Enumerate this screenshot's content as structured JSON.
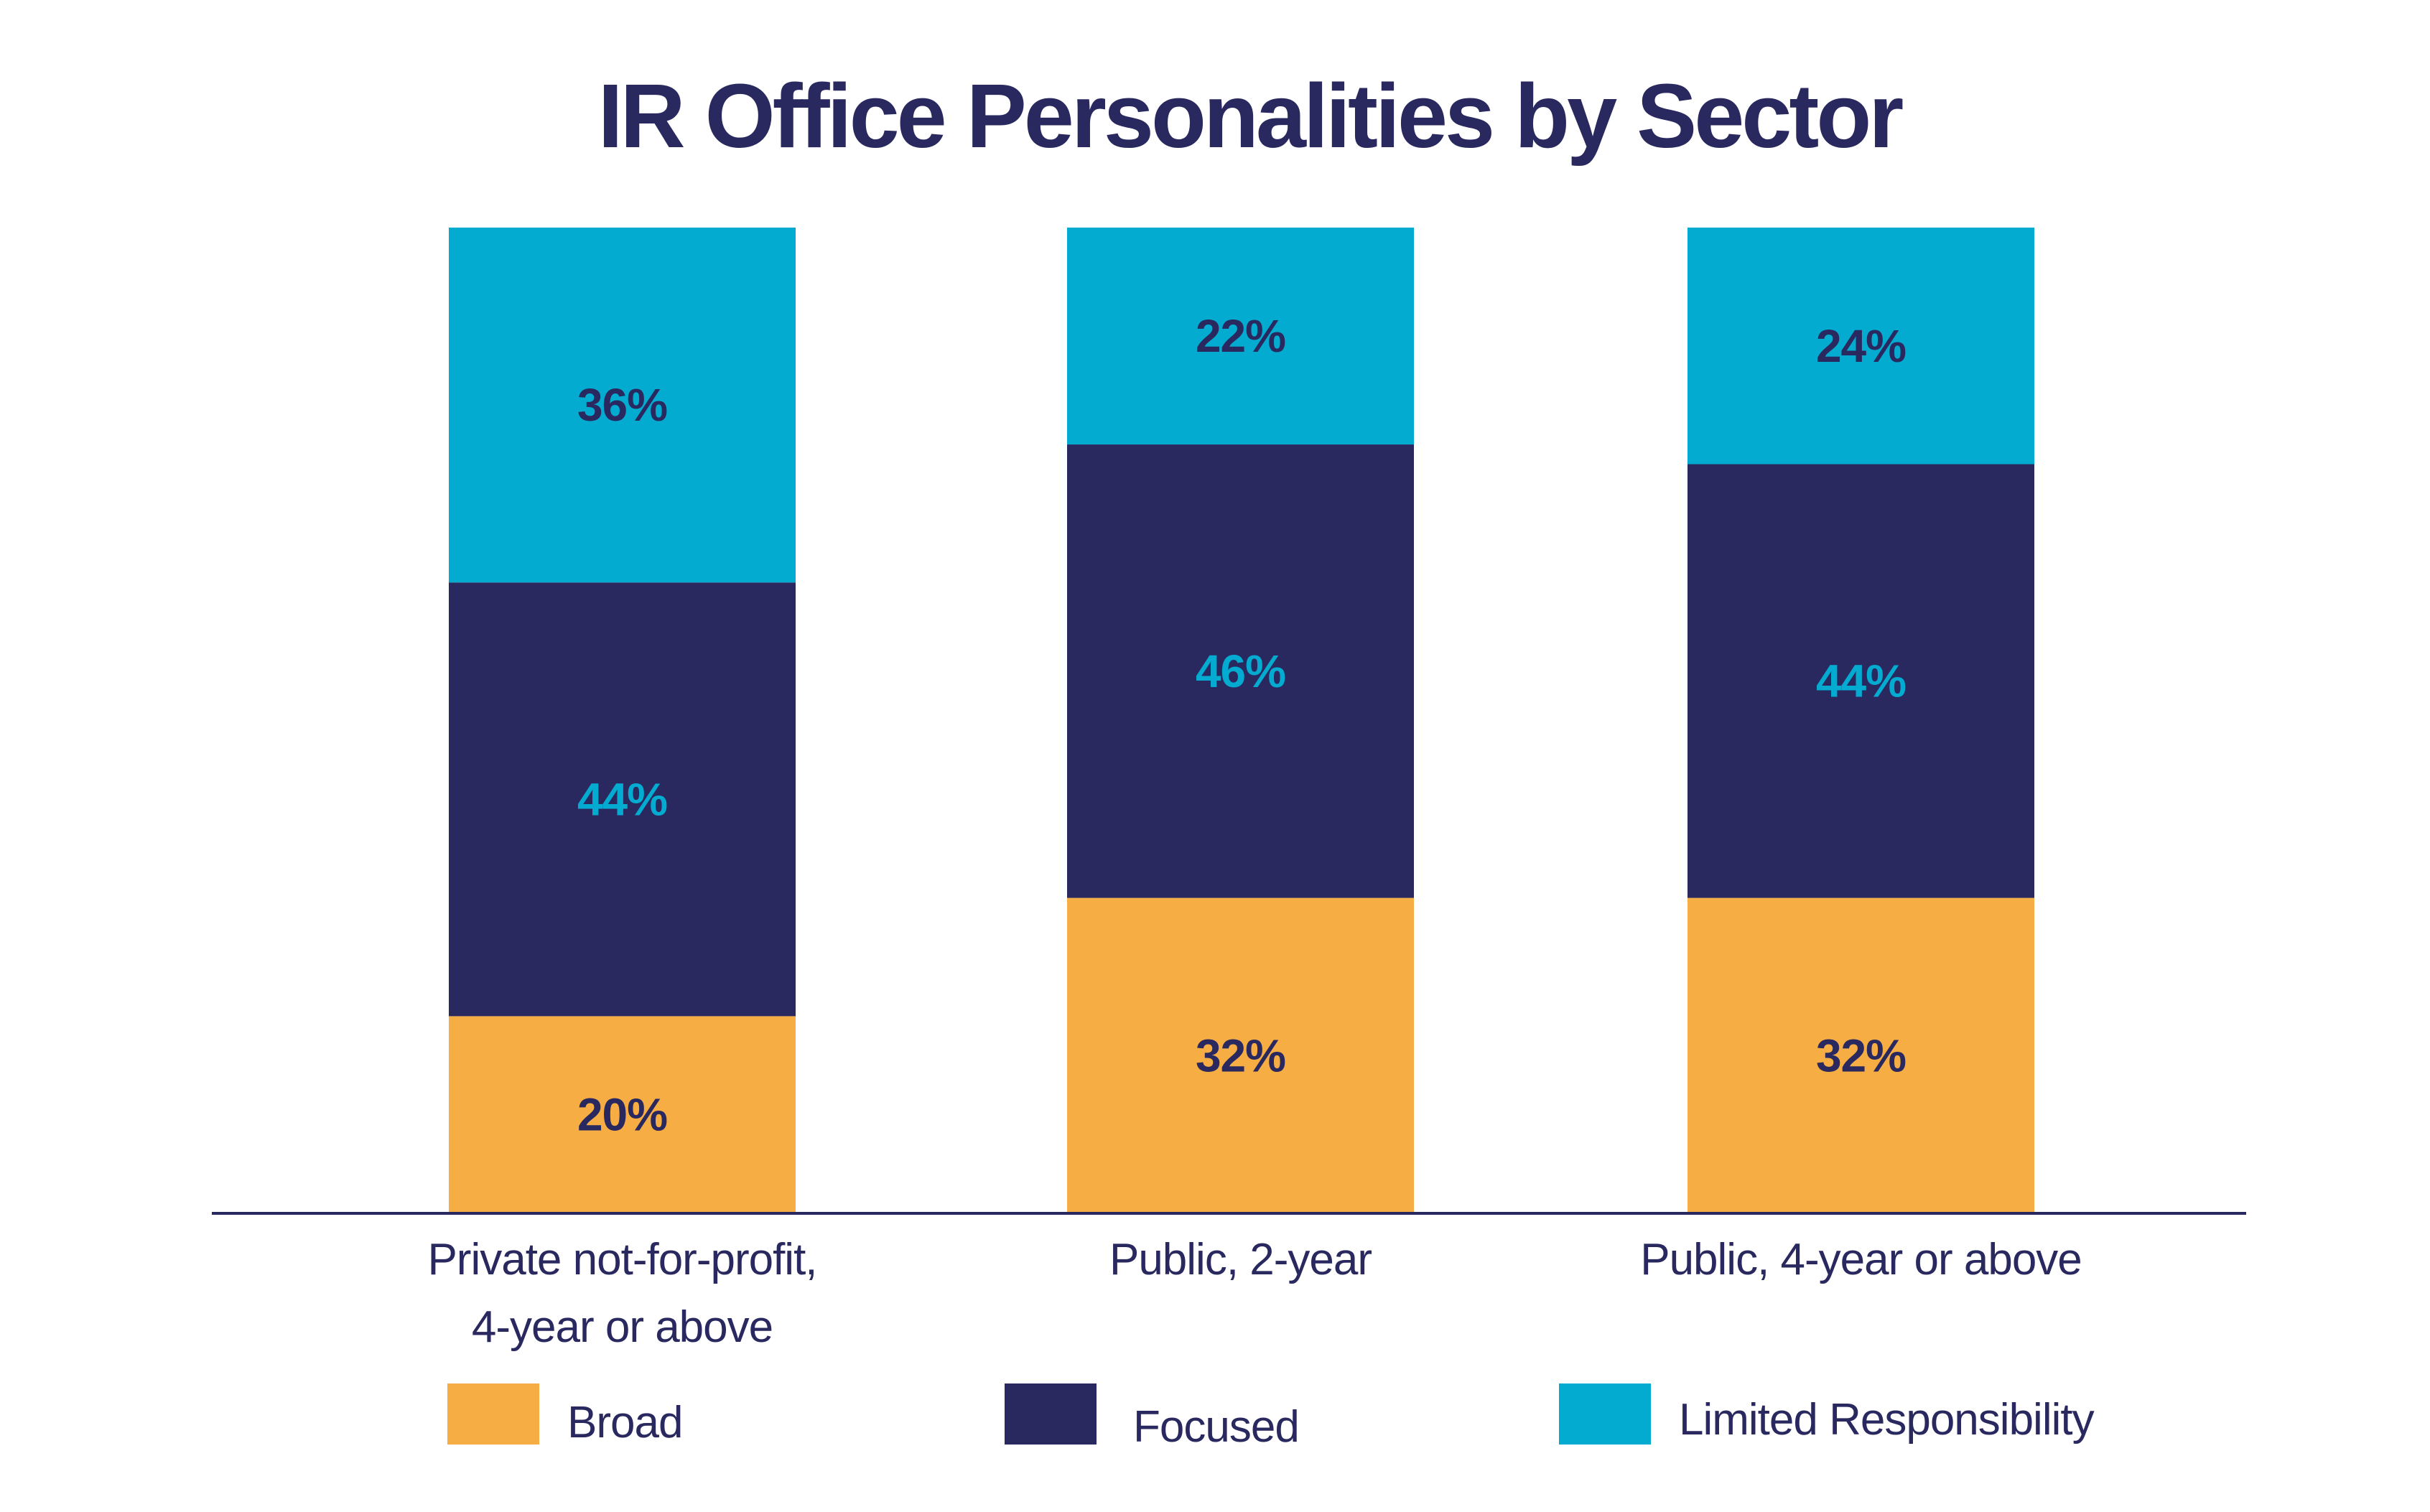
{
  "chart_data": {
    "type": "bar",
    "stacked": true,
    "orientation": "vertical",
    "title": "IR Office Personalities by Sector",
    "xlabel": "",
    "ylabel": "",
    "ylim": [
      0,
      100
    ],
    "grid": false,
    "legend_position": "bottom",
    "categories": [
      [
        "Private not-for-profit,",
        "4-year or above"
      ],
      [
        "Public, 2-year"
      ],
      [
        "Public, 4-year or above"
      ]
    ],
    "series": [
      {
        "name": "Broad",
        "color": "#F6AE44",
        "label_color": "#29285F",
        "values": [
          20,
          32,
          32
        ],
        "labels": [
          "20%",
          "32%",
          "32%"
        ]
      },
      {
        "name": "Focused",
        "color": "#29285F",
        "label_color": "#04ABD1",
        "values": [
          44,
          46,
          44
        ],
        "labels": [
          "44%",
          "46%",
          "44%"
        ]
      },
      {
        "name": "Limited Responsibility",
        "color": "#04ABD1",
        "label_color": "#29285F",
        "values": [
          36,
          22,
          24
        ],
        "labels": [
          "36%",
          "22%",
          "24%"
        ]
      }
    ],
    "colors": {
      "title": "#29285F",
      "axis": "#29285F",
      "text": "#29285F"
    }
  }
}
